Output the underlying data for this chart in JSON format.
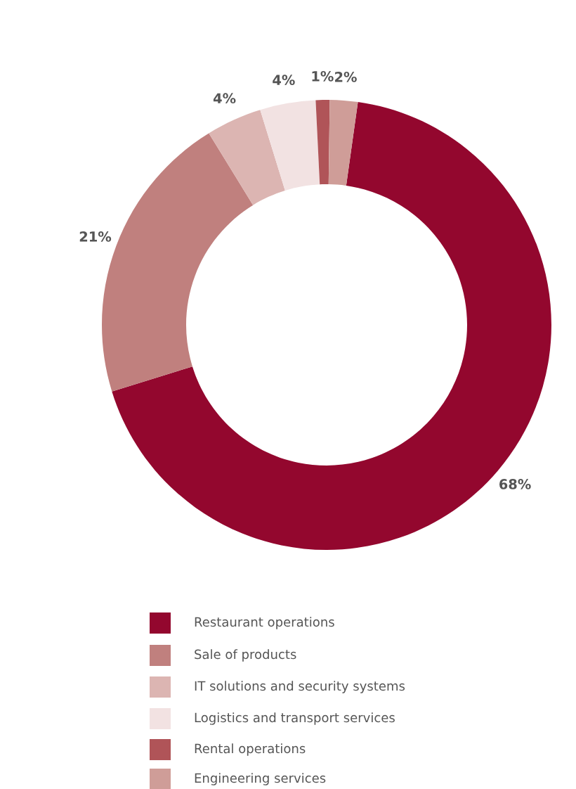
{
  "chart_data": {
    "type": "donut",
    "categories": [
      "Restaurant operations",
      "Sale of products",
      "IT solutions and security systems",
      "Logistics and transport services",
      "Rental operations",
      "Engineering services"
    ],
    "values": [
      68,
      21,
      4,
      4,
      1,
      2
    ],
    "colors": [
      "#93072e",
      "#c0807e",
      "#dcb5b2",
      "#f2e2e2",
      "#b05458",
      "#cf9d98"
    ],
    "value_labels": [
      "68%",
      "21%",
      "4%",
      "4%",
      "1%",
      "2%"
    ],
    "legend": "bottom"
  }
}
